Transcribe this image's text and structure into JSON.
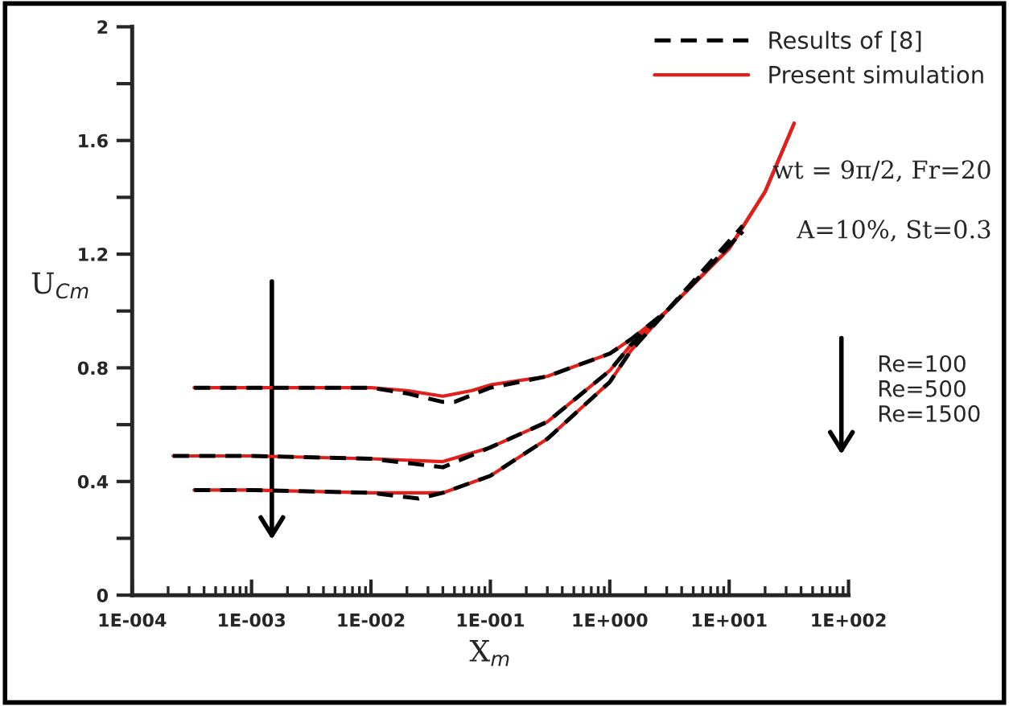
{
  "chart_data": {
    "type": "line",
    "xlabel": "X$_{m}$",
    "ylabel": "U$_{Cm}$",
    "log": "x",
    "grid": false,
    "legend": "top right",
    "marker": "none",
    "xlim": [
      0.0001,
      100
    ],
    "xticks": [
      {
        "value": 0.0001,
        "label": "1E-004"
      },
      {
        "value": 0.001,
        "label": "1E-003"
      },
      {
        "value": 0.01,
        "label": "1E-002"
      },
      {
        "value": 0.1,
        "label": "1E-001"
      },
      {
        "value": 1,
        "label": "1E+000"
      },
      {
        "value": 10,
        "label": "1E+001"
      },
      {
        "value": 100,
        "label": "1E+002"
      }
    ],
    "ylim": [
      0,
      2
    ],
    "yticks": [
      0,
      {
        "value": 0.2,
        "label": null
      },
      0.4,
      {
        "value": 0.6,
        "label": null
      },
      0.8,
      {
        "value": 1.0,
        "label": null
      },
      1.2,
      {
        "value": 1.4,
        "label": null
      },
      1.6,
      {
        "value": 1.8,
        "label": null
      },
      2
    ],
    "series": [
      {
        "name": "Results of [8]",
        "color": "#000000",
        "line_style": "dashed",
        "x": [
          0.00033,
          0.001,
          0.01,
          0.02,
          0.04,
          0.05,
          0.1,
          0.3,
          1,
          1.5,
          3,
          13
        ],
        "values": [
          0.73,
          0.73,
          0.73,
          0.71,
          0.68,
          0.68,
          0.73,
          0.77,
          0.85,
          0.9,
          1.0,
          1.3
        ]
      },
      {
        "name": "Present simulation",
        "color": "#e0201b",
        "line_style": "solid",
        "x": [
          0.00033,
          0.001,
          0.01,
          0.02,
          0.04,
          0.07,
          0.1,
          0.3,
          1,
          1.5,
          3,
          10,
          20,
          35
        ],
        "values": [
          0.73,
          0.73,
          0.73,
          0.72,
          0.7,
          0.72,
          0.74,
          0.77,
          0.85,
          0.9,
          1.0,
          1.22,
          1.42,
          1.66
        ]
      },
      {
        "color": "#000000",
        "line_style": "dashed",
        "x": [
          0.00022,
          0.001,
          0.01,
          0.04,
          0.1,
          0.3,
          1,
          1.5,
          3,
          13
        ],
        "values": [
          0.49,
          0.49,
          0.48,
          0.45,
          0.52,
          0.61,
          0.79,
          0.88,
          1.0,
          1.28
        ]
      },
      {
        "color": "#e0201b",
        "line_style": "solid",
        "x": [
          0.00022,
          0.001,
          0.01,
          0.04,
          0.1,
          0.3,
          1,
          1.5,
          3,
          10,
          20,
          35
        ],
        "values": [
          0.49,
          0.49,
          0.48,
          0.47,
          0.52,
          0.61,
          0.79,
          0.88,
          1.0,
          1.22,
          1.42,
          1.66
        ]
      },
      {
        "color": "#000000",
        "line_style": "dashed",
        "x": [
          0.00033,
          0.001,
          0.01,
          0.025,
          0.04,
          0.1,
          0.3,
          1,
          1.5,
          3,
          13
        ],
        "values": [
          0.37,
          0.37,
          0.36,
          0.34,
          0.36,
          0.42,
          0.55,
          0.75,
          0.86,
          1.0,
          1.28
        ]
      },
      {
        "color": "#e0201b",
        "line_style": "solid",
        "x": [
          0.00033,
          0.001,
          0.01,
          0.04,
          0.1,
          0.3,
          1,
          1.5,
          3,
          10,
          20,
          35
        ],
        "values": [
          0.37,
          0.37,
          0.36,
          0.36,
          0.42,
          0.55,
          0.75,
          0.86,
          1.0,
          1.22,
          1.42,
          1.66
        ]
      }
    ],
    "annotations": [
      "wt = 9π/2, Fr=20",
      "A=10%, St=0.3",
      "Re=100\nRe=500\nRe=1500"
    ]
  }
}
